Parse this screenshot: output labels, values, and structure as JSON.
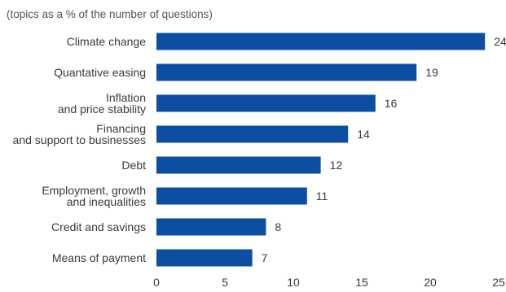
{
  "chart_data": {
    "type": "bar",
    "orientation": "horizontal",
    "subtitle": "(topics as a % of the number of questions)",
    "categories": [
      "Climate change",
      "Quantative easing",
      "Inflation\nand price stability",
      "Financing\nand support to businesses",
      "Debt",
      "Employment, growth\nand inequalities",
      "Credit and savings",
      "Means of payment"
    ],
    "values": [
      24,
      19,
      16,
      14,
      12,
      11,
      8,
      7
    ],
    "xlim": [
      0,
      25
    ],
    "xticks": [
      0,
      5,
      10,
      15,
      20,
      25
    ],
    "grid": false,
    "bar_color": "#0b4ea2"
  }
}
